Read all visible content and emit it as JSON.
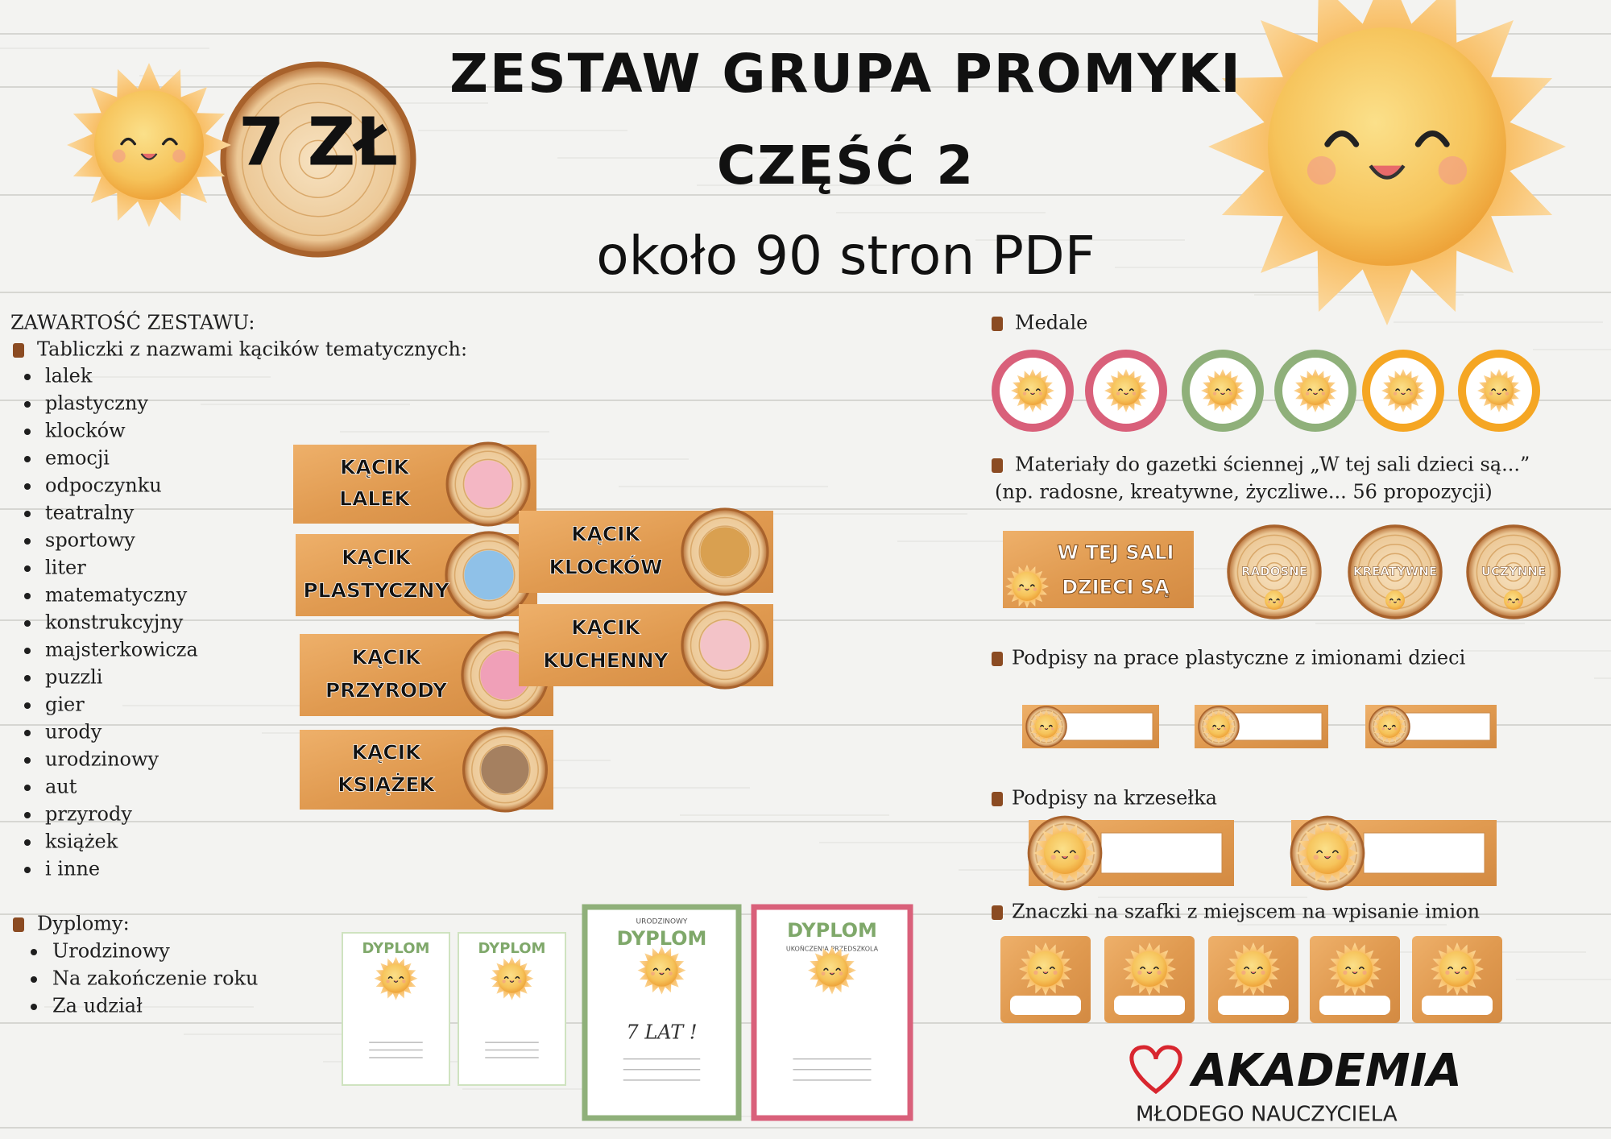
{
  "header": {
    "title": "ZESTAW GRUPA PROMYKI",
    "subtitle": "CZĘŚĆ 2",
    "pages": "około 90 stron PDF",
    "price": "7 ZŁ"
  },
  "contents": {
    "heading": "ZAWARTOŚĆ ZESTAWU:",
    "corners_heading": "Tabliczki z nazwami kącików tematycznych:",
    "corners": [
      "lalek",
      "plastyczny",
      "klocków",
      "emocji",
      "odpoczynku",
      "teatralny",
      "sportowy",
      "liter",
      "matematyczny",
      "konstrukcyjny",
      "majsterkowicza",
      "puzzli",
      "gier",
      "urody",
      "urodzinowy",
      "aut",
      "przyrody",
      "książek",
      "i inne"
    ],
    "signs": [
      {
        "line1": "KĄCIK",
        "line2": "LALEK"
      },
      {
        "line1": "KĄCIK",
        "line2": "PLASTYCZNY"
      },
      {
        "line1": "KĄCIK",
        "line2": "PRZYRODY"
      },
      {
        "line1": "KĄCIK",
        "line2": "KSIĄŻEK"
      },
      {
        "line1": "KĄCIK",
        "line2": "KLOCKÓW"
      },
      {
        "line1": "KĄCIK",
        "line2": "KUCHENNY"
      }
    ]
  },
  "diplomas": {
    "heading": "Dyplomy:",
    "items": [
      "Urodzinowy",
      "Na zakończenie roku",
      "Za udział"
    ],
    "cards": [
      {
        "title": "DYPLOM"
      },
      {
        "title": "DYPLOM"
      },
      {
        "title": "DYPLOM",
        "kicker": "URODZINOWY",
        "age": "7 LAT !"
      },
      {
        "title": "DYPLOM",
        "kicker": "UKOŃCZENIA PRZEDSZKOLA"
      }
    ]
  },
  "medals": {
    "heading": "Medale"
  },
  "wall": {
    "heading": "Materiały do gazetki ściennej „W tej sali dzieci są...”",
    "note": "(np. radosne, kreatywne, życzliwe... 56 propozycji)",
    "banner": [
      "W TEJ SALI",
      "DZIECI SĄ"
    ],
    "words": [
      "RADOSNE",
      "KREATYWNE",
      "UCZYNNE"
    ]
  },
  "art_labels": {
    "heading": "Podpisy na prace plastyczne z imionami dzieci"
  },
  "chair_labels": {
    "heading": "Podpisy na krzesełka"
  },
  "locker_badges": {
    "heading": "Znaczki na szafki z miejscem na wpisanie imion"
  },
  "logo": {
    "name": "AKADEMIA",
    "tagline": "MŁODEGO NAUCZYCIELA"
  }
}
